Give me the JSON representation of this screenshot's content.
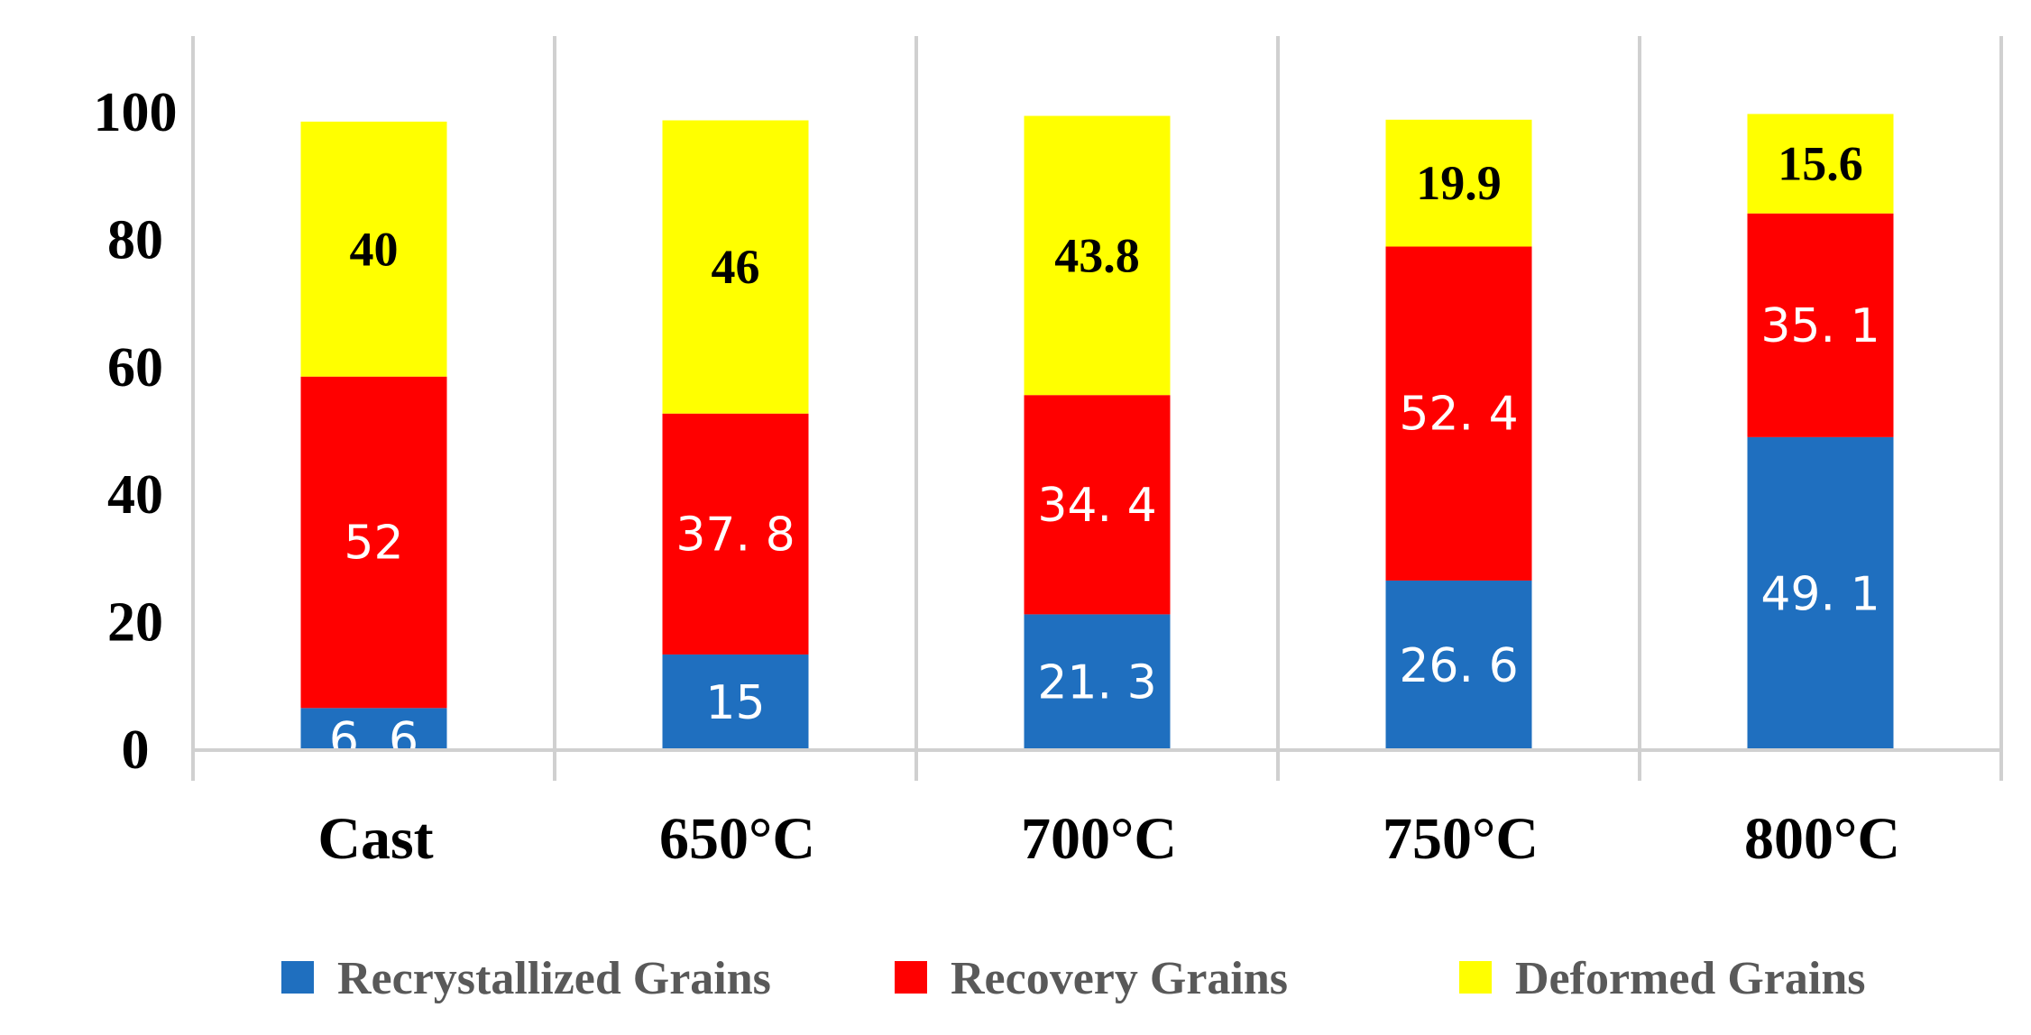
{
  "chart_data": {
    "type": "bar",
    "stacked": true,
    "title": "",
    "xlabel": "",
    "ylabel": "",
    "ylim": [
      0,
      110
    ],
    "yticks": [
      0,
      20,
      40,
      60,
      80,
      100
    ],
    "categories": [
      "Cast",
      "650°C",
      "700°C",
      "750°C",
      "800°C"
    ],
    "series": [
      {
        "name": "Recrystallized Grains",
        "color": "#1f6fbf",
        "values": [
          6.6,
          15,
          21.3,
          26.6,
          49.1
        ],
        "labels": [
          "6. 6",
          "15",
          "21. 3",
          "26. 6",
          "49. 1"
        ]
      },
      {
        "name": "Recovery Grains",
        "color": "#ff0000",
        "values": [
          52,
          37.8,
          34.4,
          52.4,
          35.1
        ],
        "labels": [
          "52",
          "37. 8",
          "34. 4",
          "52. 4",
          "35. 1"
        ]
      },
      {
        "name": "Deformed Grains",
        "color": "#ffff00",
        "values": [
          40,
          46,
          43.8,
          19.9,
          15.6
        ],
        "labels": [
          "40",
          "46",
          "43.8",
          "19.9",
          "15.6"
        ]
      }
    ],
    "grid": "vertical-category-separators",
    "legend": "bottom"
  }
}
